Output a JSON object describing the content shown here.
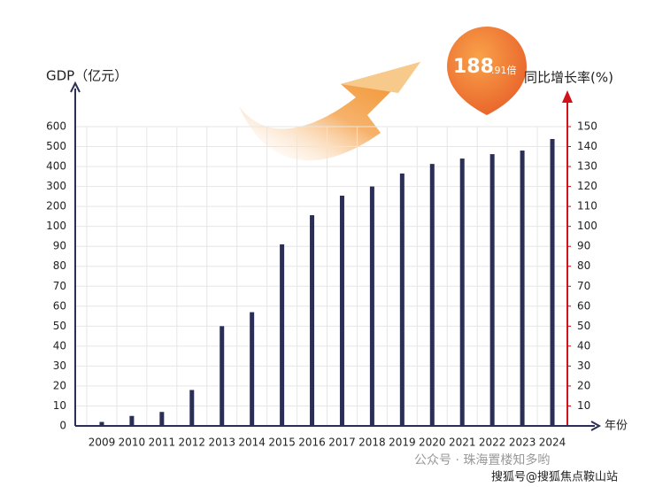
{
  "chart_data": {
    "type": "bar",
    "y_label": "GDP（亿元）",
    "y2_label": "同比增长率(%)",
    "x_label": "年份",
    "annotation_main": "188",
    "annotation_sub": ".91倍",
    "categories": [
      "2009",
      "2010",
      "2011",
      "2012",
      "2013",
      "2014",
      "2015",
      "2016",
      "2017",
      "2018",
      "2019",
      "2020",
      "2021",
      "2022",
      "2023",
      "2024"
    ],
    "values": [
      2,
      5,
      7,
      18,
      50,
      57,
      91,
      156,
      254,
      300,
      365,
      413,
      440,
      462,
      480,
      538
    ],
    "color": "#2b2f55",
    "ylim": [
      0,
      600
    ],
    "yticks": [
      0,
      10,
      20,
      30,
      40,
      50,
      60,
      70,
      80,
      90,
      100,
      200,
      300,
      400,
      500,
      600
    ],
    "y2lim": [
      0,
      150
    ],
    "y2ticks": [
      10,
      20,
      30,
      40,
      50,
      60,
      70,
      80,
      90,
      100,
      110,
      120,
      130,
      140,
      150
    ],
    "grid": true,
    "watermark_1": "公众号 · 珠海置楼知多哟",
    "watermark_2": "搜狐号@搜狐焦点鞍山站"
  }
}
